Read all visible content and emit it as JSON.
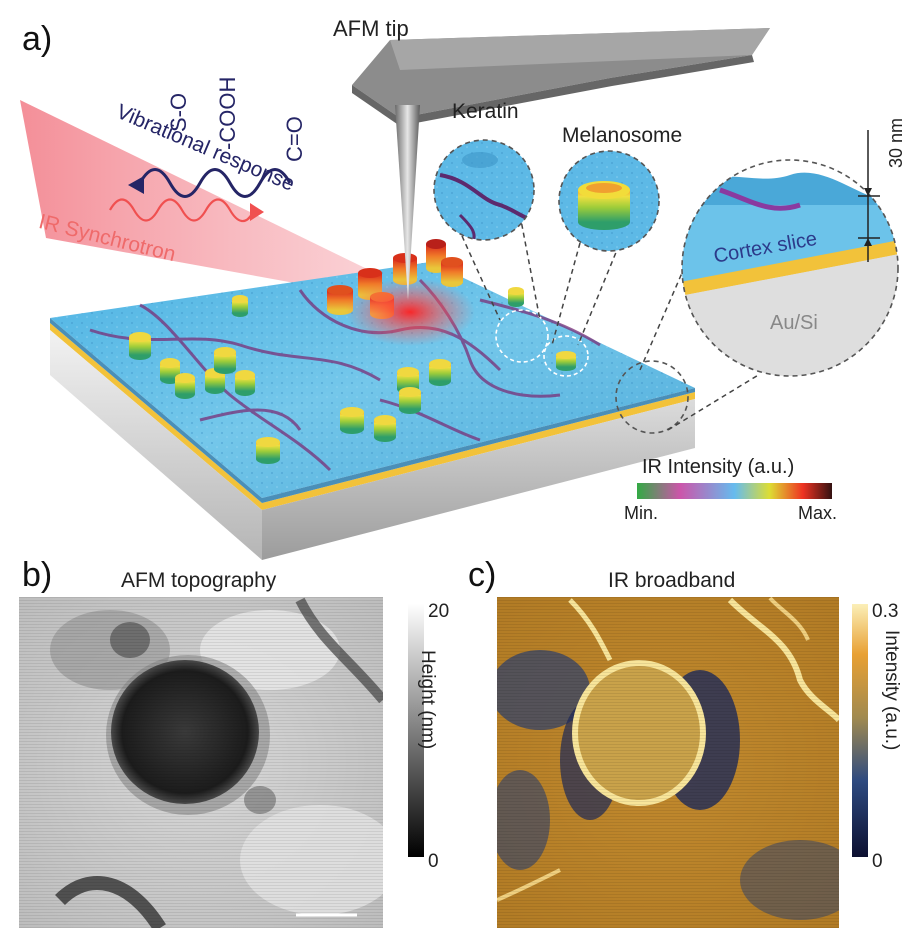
{
  "panel_a": {
    "label": "a)",
    "afm_tip": "AFM tip",
    "ir_source": "IR Synchrotron",
    "vibrational": "Vibrational response",
    "groups": [
      "S-O",
      "-COOH",
      "C=O"
    ],
    "keratin": "Keratin",
    "melanosome": "Melanosome",
    "cortex": "Cortex slice",
    "substrate": "Au/Si",
    "thickness": "30 nm",
    "colorbar": {
      "title": "IR Intensity (a.u.)",
      "min": "Min.",
      "max": "Max.",
      "colors": [
        "#33aa44",
        "#cc55aa",
        "#66bbee",
        "#dddd33",
        "#ee3322",
        "#331111"
      ]
    }
  },
  "panel_b": {
    "label": "b)",
    "title": "AFM topography",
    "cbar_label": "Height (nm)",
    "cbar_max": "20",
    "cbar_min": "0"
  },
  "panel_c": {
    "label": "c)",
    "title": "IR broadband",
    "cbar_label": "Intensity (a.u.)",
    "cbar_max": "0.3",
    "cbar_min": "0"
  }
}
